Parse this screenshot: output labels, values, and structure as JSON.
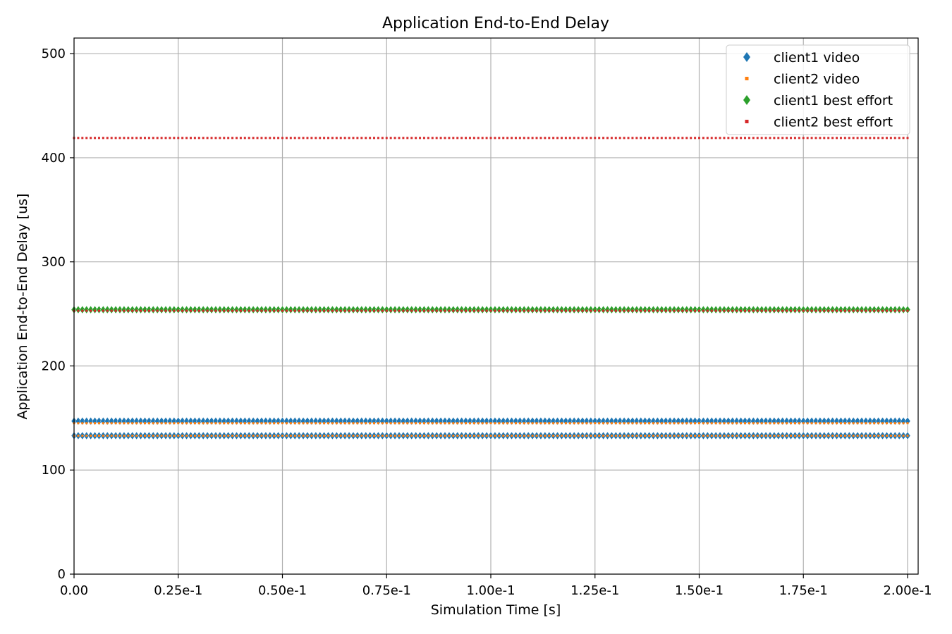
{
  "chart_data": {
    "type": "scatter",
    "title": "Application End-to-End Delay",
    "xlabel": "Simulation Time [s]",
    "ylabel": "Application End-to-End Delay [us]",
    "xlim": [
      0,
      0.2
    ],
    "ylim": [
      0,
      515
    ],
    "x_ticks": [
      0,
      0.025,
      0.05,
      0.075,
      0.1,
      0.125,
      0.15,
      0.175,
      0.2
    ],
    "x_tick_labels": [
      "0.00",
      "0.25e-1",
      "0.50e-1",
      "0.75e-1",
      "1.00e-1",
      "1.25e-1",
      "1.50e-1",
      "1.75e-1",
      "2.00e-1"
    ],
    "y_ticks": [
      0,
      100,
      200,
      300,
      400,
      500
    ],
    "y_tick_labels": [
      "0",
      "100",
      "200",
      "300",
      "400",
      "500"
    ],
    "grid": true,
    "legend_position": "top-right",
    "x_range": {
      "start": 0.0,
      "end": 0.2,
      "step": 0.001
    },
    "series": [
      {
        "name": "client1 video",
        "marker": "diamond",
        "color": "#1f77b4",
        "y_levels": [
          147,
          133
        ]
      },
      {
        "name": "client2 video",
        "marker": "square",
        "color": "#ff7f0e",
        "y_levels": [
          145,
          133
        ]
      },
      {
        "name": "client1 best effort",
        "marker": "diamond",
        "color": "#2ca02c",
        "y_levels": [
          254
        ]
      },
      {
        "name": "client2 best effort",
        "marker": "square",
        "color": "#d62728",
        "y_levels": [
          419,
          253
        ]
      }
    ]
  }
}
